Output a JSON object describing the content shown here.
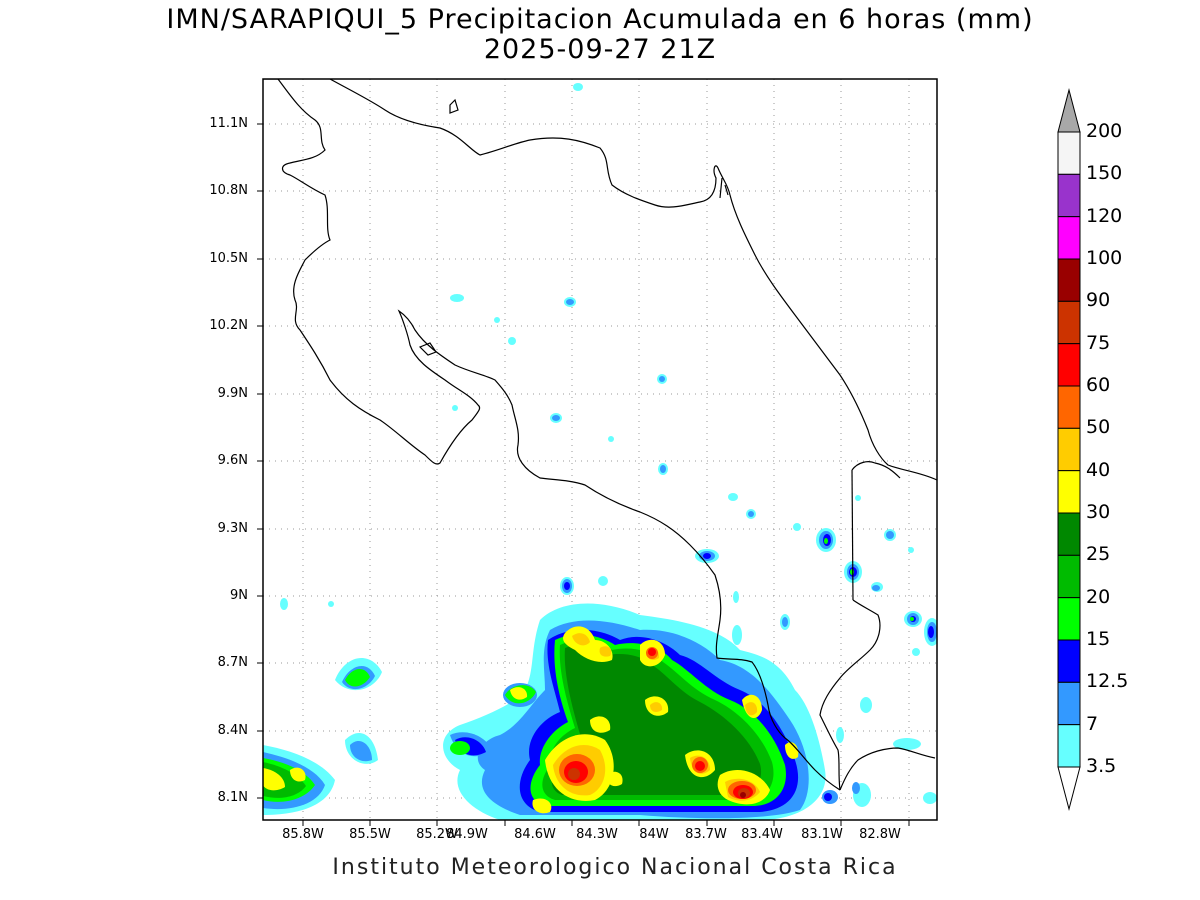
{
  "title_line1": "IMN/SARAPIQUI_5 Precipitacion Acumulada en 6 horas (mm)",
  "title_line2": "2025-09-27 21Z",
  "credit": "Instituto Meteorologico Nacional Costa Rica",
  "lat_labels": [
    "11.1N",
    "10.8N",
    "10.5N",
    "10.2N",
    "9.9N",
    "9.6N",
    "9.3N",
    "9N",
    "8.7N",
    "8.4N",
    "8.1N"
  ],
  "lon_labels": [
    "85.8W",
    "85.5W",
    "85.2W",
    "84.9W",
    "84.6W",
    "84.3W",
    "84W",
    "83.7W",
    "83.4W",
    "83.1W",
    "82.8W"
  ],
  "colorbar": {
    "labels": [
      "200",
      "150",
      "120",
      "100",
      "90",
      "75",
      "60",
      "50",
      "40",
      "30",
      "25",
      "20",
      "15",
      "12.5",
      "7",
      "3.5"
    ],
    "colors": [
      "#f5f5f5",
      "#9933cc",
      "#ff00ff",
      "#990000",
      "#cc3300",
      "#ff0000",
      "#ff6600",
      "#ffcc00",
      "#ffff00",
      "#008800",
      "#00bb00",
      "#00ff00",
      "#0000ff",
      "#3399ff",
      "#66ffff"
    ],
    "over_color": "#a8a8a8",
    "under_color": "#ffffff"
  }
}
